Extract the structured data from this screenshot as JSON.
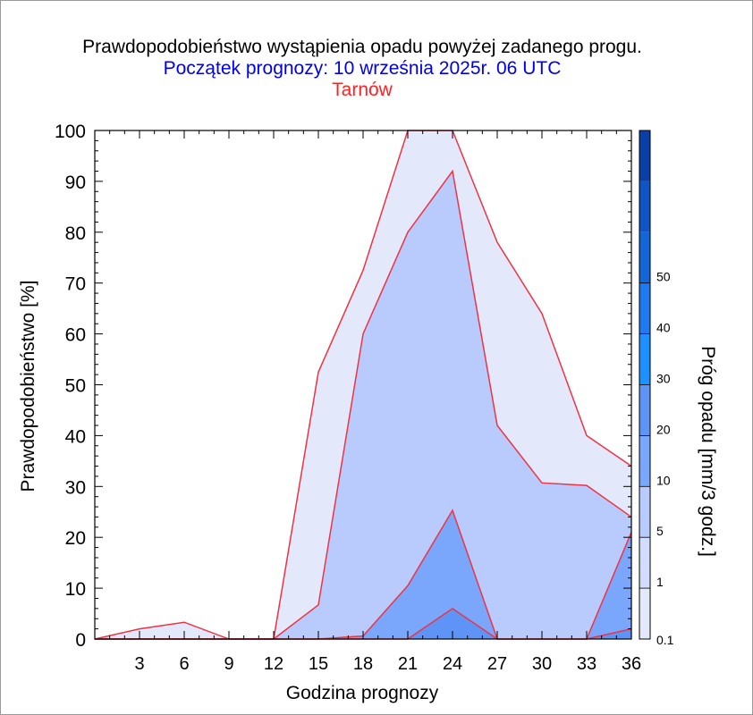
{
  "chart_data": {
    "type": "area",
    "title": "Prawdopodobieństwo wystąpienia opadu powyżej zadanego progu.",
    "subtitle": "Początek prognozy: 10 września 2025r. 06 UTC",
    "location": "Tarnów",
    "xlabel": "Godzina prognozy",
    "ylabel": "Prawdopodobieństwo [%]",
    "colorbar_label": "Próg opadu [mm/3 godz.]",
    "xlim": [
      0,
      36
    ],
    "ylim": [
      0,
      100
    ],
    "x_ticks": [
      "3",
      "6",
      "9",
      "12",
      "15",
      "18",
      "21",
      "24",
      "27",
      "30",
      "33",
      "36"
    ],
    "y_ticks": [
      "0",
      "10",
      "20",
      "30",
      "40",
      "50",
      "60",
      "70",
      "80",
      "90",
      "100"
    ],
    "colorbar_levels": [
      0.1,
      1,
      5,
      10,
      20,
      30,
      40,
      50
    ],
    "colorbar_tick_labels": [
      "0.1",
      "1",
      "5",
      "10",
      "20",
      "30",
      "40",
      "50"
    ],
    "colorbar_colors": [
      "#e3e8fb",
      "#d2dcfc",
      "#b9cbfc",
      "#7aa6fc",
      "#5e94f6",
      "#1e90ff",
      "#1e7aee",
      "#1466d6",
      "#0f56c4",
      "#0a3fa8"
    ],
    "x": [
      0,
      3,
      6,
      9,
      12,
      15,
      18,
      21,
      24,
      27,
      30,
      33,
      36
    ],
    "series": [
      {
        "threshold": 0.1,
        "color": "#e3e8fb",
        "values": [
          0,
          2,
          3.3,
          0,
          0,
          52.5,
          72.5,
          100,
          100,
          78,
          64,
          40,
          34
        ]
      },
      {
        "threshold": 1,
        "color": "#b9cbfc",
        "values": [
          0,
          0,
          0,
          0,
          0,
          6.7,
          60,
          80,
          92,
          42,
          30.7,
          30.2,
          24
        ]
      },
      {
        "threshold": 5,
        "color": "#7aa6fc",
        "values": [
          0,
          0,
          0,
          0,
          0,
          0,
          0.6,
          10.5,
          25.3,
          0,
          0,
          0,
          21
        ]
      },
      {
        "threshold": 10,
        "color": "#5e94f6",
        "values": [
          0,
          0,
          0,
          0,
          0,
          0,
          0,
          0,
          6,
          0,
          0,
          0,
          2
        ]
      }
    ],
    "line_color": "#ee3344",
    "grid": false
  }
}
